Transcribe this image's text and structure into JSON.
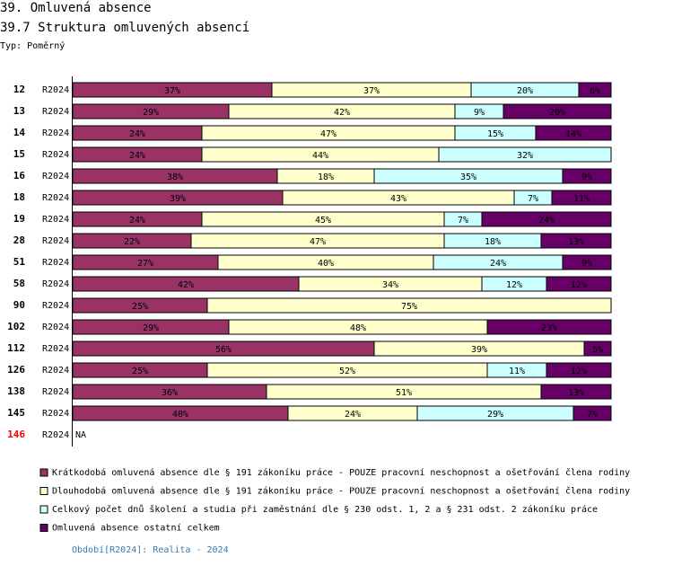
{
  "chart_data": {
    "type": "stacked-bar-horizontal",
    "title": "39. Omluvená absence",
    "subtitle": "39.7 Struktura omluvených absencí",
    "chart_kind_label": "Typ: Poměrný",
    "footer": "Období[R2024]: Realita - 2024",
    "xlim": [
      0,
      100
    ],
    "categories": [
      "12",
      "13",
      "14",
      "15",
      "16",
      "18",
      "19",
      "28",
      "51",
      "58",
      "90",
      "102",
      "112",
      "126",
      "138",
      "145",
      "146"
    ],
    "category_colors": [
      "#000000",
      "#000000",
      "#000000",
      "#000000",
      "#000000",
      "#000000",
      "#000000",
      "#000000",
      "#000000",
      "#000000",
      "#000000",
      "#000000",
      "#000000",
      "#000000",
      "#000000",
      "#000000",
      "#ff0000"
    ],
    "period_labels": [
      "R2024",
      "R2024",
      "R2024",
      "R2024",
      "R2024",
      "R2024",
      "R2024",
      "R2024",
      "R2024",
      "R2024",
      "R2024",
      "R2024",
      "R2024",
      "R2024",
      "R2024",
      "R2024",
      "R2024"
    ],
    "missing_labels": [
      null,
      null,
      null,
      null,
      null,
      null,
      null,
      null,
      null,
      null,
      null,
      null,
      null,
      null,
      null,
      null,
      "NA"
    ],
    "series": [
      {
        "name": "Krátkodobá omluvená absence dle § 191 zákoníku práce - POUZE pracovní neschopnost a ošetřování člena rodiny",
        "color": "#993366",
        "values": [
          37,
          29,
          24,
          24,
          38,
          39,
          24,
          22,
          27,
          42,
          25,
          29,
          56,
          25,
          36,
          40,
          null
        ],
        "value_labels": [
          "37%",
          "29%",
          "24%",
          "24%",
          "38%",
          "39%",
          "24%",
          "22%",
          "27%",
          "42%",
          "25%",
          "29%",
          "56%",
          "25%",
          "36%",
          "40%",
          null
        ]
      },
      {
        "name": "Dlouhodobá omluvená absence dle § 191 zákoníku práce - POUZE pracovní neschopnost a ošetřování člena rodiny",
        "color": "#ffffcc",
        "values": [
          37,
          42,
          47,
          44,
          18,
          43,
          45,
          47,
          40,
          34,
          75,
          48,
          39,
          52,
          51,
          24,
          null
        ],
        "value_labels": [
          "37%",
          "42%",
          "47%",
          "44%",
          "18%",
          "43%",
          "45%",
          "47%",
          "40%",
          "34%",
          "75%",
          "48%",
          "39%",
          "52%",
          "51%",
          "24%",
          null
        ]
      },
      {
        "name": "Celkový počet dnů školení a studia při zaměstnání dle § 230 odst. 1, 2 a § 231 odst. 2 zákoníku práce",
        "color": "#ccffff",
        "values": [
          20,
          9,
          15,
          32,
          35,
          7,
          7,
          18,
          24,
          12,
          null,
          null,
          null,
          11,
          null,
          29,
          null
        ],
        "value_labels": [
          "20%",
          "9%",
          "15%",
          "32%",
          "35%",
          "7%",
          "7%",
          "18%",
          "24%",
          "12%",
          null,
          null,
          null,
          "11%",
          null,
          "29%",
          null
        ]
      },
      {
        "name": "Omluvená absence ostatní celkem",
        "color": "#660066",
        "values": [
          6,
          20,
          14,
          null,
          9,
          11,
          24,
          13,
          9,
          12,
          null,
          23,
          5,
          12,
          13,
          7,
          null
        ],
        "value_labels": [
          "6%",
          "20%",
          "14%",
          null,
          "9%",
          "11%",
          "24%",
          "13%",
          "9%",
          "12%",
          null,
          "23%",
          "5%",
          "12%",
          "13%",
          "7%",
          null
        ]
      }
    ]
  }
}
